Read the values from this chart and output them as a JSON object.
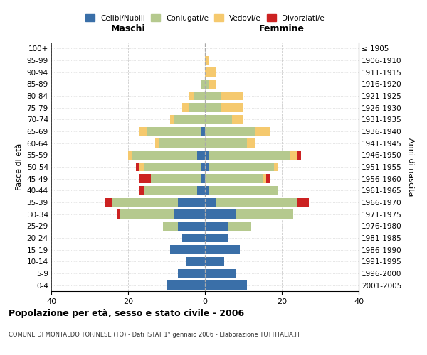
{
  "age_groups": [
    "0-4",
    "5-9",
    "10-14",
    "15-19",
    "20-24",
    "25-29",
    "30-34",
    "35-39",
    "40-44",
    "45-49",
    "50-54",
    "55-59",
    "60-64",
    "65-69",
    "70-74",
    "75-79",
    "80-84",
    "85-89",
    "90-94",
    "95-99",
    "100+"
  ],
  "birth_years": [
    "2001-2005",
    "1996-2000",
    "1991-1995",
    "1986-1990",
    "1981-1985",
    "1976-1980",
    "1971-1975",
    "1966-1970",
    "1961-1965",
    "1956-1960",
    "1951-1955",
    "1946-1950",
    "1941-1945",
    "1936-1940",
    "1931-1935",
    "1926-1930",
    "1921-1925",
    "1916-1920",
    "1911-1915",
    "1906-1910",
    "≤ 1905"
  ],
  "maschi": {
    "celibi": [
      10,
      7,
      5,
      9,
      6,
      7,
      8,
      7,
      2,
      1,
      1,
      2,
      0,
      1,
      0,
      0,
      0,
      0,
      0,
      0,
      0
    ],
    "coniugati": [
      0,
      0,
      0,
      0,
      0,
      4,
      14,
      17,
      14,
      13,
      15,
      17,
      12,
      14,
      8,
      4,
      3,
      1,
      0,
      0,
      0
    ],
    "vedovi": [
      0,
      0,
      0,
      0,
      0,
      0,
      0,
      0,
      0,
      0,
      1,
      1,
      1,
      2,
      1,
      2,
      1,
      0,
      0,
      0,
      0
    ],
    "divorziati": [
      0,
      0,
      0,
      0,
      0,
      0,
      1,
      2,
      1,
      3,
      1,
      0,
      0,
      0,
      0,
      0,
      0,
      0,
      0,
      0,
      0
    ]
  },
  "femmine": {
    "nubili": [
      11,
      8,
      5,
      9,
      6,
      6,
      8,
      3,
      1,
      0,
      1,
      1,
      0,
      0,
      0,
      0,
      0,
      0,
      0,
      0,
      0
    ],
    "coniugate": [
      0,
      0,
      0,
      0,
      0,
      6,
      15,
      21,
      18,
      15,
      17,
      21,
      11,
      13,
      7,
      4,
      4,
      1,
      0,
      0,
      0
    ],
    "vedove": [
      0,
      0,
      0,
      0,
      0,
      0,
      0,
      0,
      0,
      1,
      1,
      2,
      2,
      4,
      3,
      6,
      6,
      2,
      3,
      1,
      0
    ],
    "divorziate": [
      0,
      0,
      0,
      0,
      0,
      0,
      0,
      3,
      0,
      1,
      0,
      1,
      0,
      0,
      0,
      0,
      0,
      0,
      0,
      0,
      0
    ]
  },
  "color_celibi": "#3a6fa8",
  "color_coniugati": "#b5c98e",
  "color_vedovi": "#f5c96e",
  "color_divorziati": "#cc2222",
  "title": "Popolazione per età, sesso e stato civile - 2006",
  "subtitle": "COMUNE DI MONTALDO TORINESE (TO) - Dati ISTAT 1° gennaio 2006 - Elaborazione TUTTITALIA.IT",
  "label_maschi": "Maschi",
  "label_femmine": "Femmine",
  "ylabel_left": "Fasce di età",
  "ylabel_right": "Anni di nascita",
  "xlim": 40,
  "background_color": "#ffffff",
  "grid_color": "#cccccc"
}
